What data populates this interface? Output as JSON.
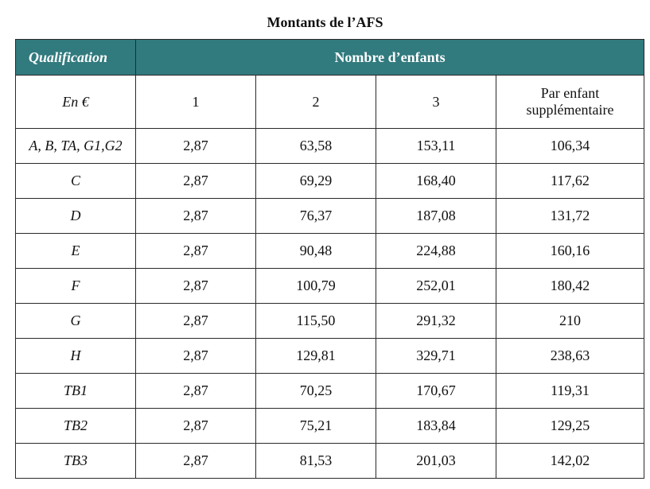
{
  "title": "Montants de l’AFS",
  "header": {
    "qualification": "Qualification",
    "nombre_enfants": "Nombre d’enfants",
    "unit": "En €",
    "col1": "1",
    "col2": "2",
    "col3": "3",
    "col4_line1": "Par enfant",
    "col4_line2": "supplémentaire"
  },
  "rows": [
    {
      "qualification": "A, B, TA, G1,G2",
      "c1": "2,87",
      "c2": "63,58",
      "c3": "153,11",
      "c4": "106,34"
    },
    {
      "qualification": "C",
      "c1": "2,87",
      "c2": "69,29",
      "c3": "168,40",
      "c4": "117,62"
    },
    {
      "qualification": "D",
      "c1": "2,87",
      "c2": "76,37",
      "c3": "187,08",
      "c4": "131,72"
    },
    {
      "qualification": "E",
      "c1": "2,87",
      "c2": "90,48",
      "c3": "224,88",
      "c4": "160,16"
    },
    {
      "qualification": "F",
      "c1": "2,87",
      "c2": "100,79",
      "c3": "252,01",
      "c4": "180,42"
    },
    {
      "qualification": "G",
      "c1": "2,87",
      "c2": "115,50",
      "c3": "291,32",
      "c4": "210"
    },
    {
      "qualification": "H",
      "c1": "2,87",
      "c2": "129,81",
      "c3": "329,71",
      "c4": "238,63"
    },
    {
      "qualification": "TB1",
      "c1": "2,87",
      "c2": "70,25",
      "c3": "170,67",
      "c4": "119,31"
    },
    {
      "qualification": "TB2",
      "c1": "2,87",
      "c2": "75,21",
      "c3": "183,84",
      "c4": "129,25"
    },
    {
      "qualification": "TB3",
      "c1": "2,87",
      "c2": "81,53",
      "c3": "201,03",
      "c4": "142,02"
    }
  ],
  "colors": {
    "header_background": "#317a7e",
    "header_text": "#ffffff",
    "border": "#2a2a2a"
  }
}
